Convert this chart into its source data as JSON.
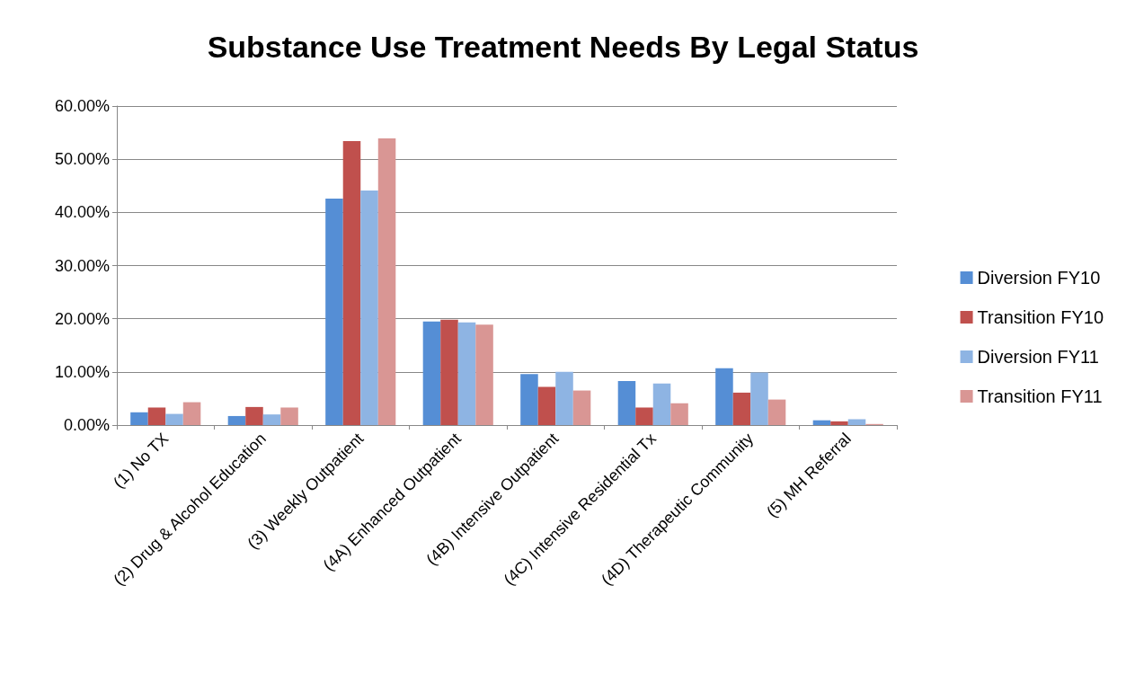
{
  "chart_data": {
    "type": "bar",
    "title": "Substance Use Treatment Needs By Legal Status",
    "categories": [
      "(1) No TX",
      "(2) Drug & Alcohol Education",
      "(3) Weekly Outpatient",
      "(4A) Enhanced Outpatient",
      "(4B) Intensive Outpatient",
      "(4C) Intensive Residential Tx",
      "(4D) Therapeutic Community",
      "(5) MH Referral"
    ],
    "series": [
      {
        "name": "Diversion FY10",
        "color": "#558ed5",
        "values": [
          2.4,
          1.7,
          42.6,
          19.5,
          9.6,
          8.3,
          10.7,
          0.9
        ]
      },
      {
        "name": "Transition FY10",
        "color": "#c0504d",
        "values": [
          3.3,
          3.4,
          53.4,
          19.8,
          7.2,
          3.3,
          6.1,
          0.7
        ]
      },
      {
        "name": "Diversion FY11",
        "color": "#8eb4e3",
        "values": [
          2.1,
          2.0,
          44.1,
          19.3,
          10.0,
          7.8,
          9.9,
          1.1
        ]
      },
      {
        "name": "Transition FY11",
        "color": "#d99694",
        "values": [
          4.3,
          3.3,
          53.9,
          18.9,
          6.5,
          4.1,
          4.8,
          0.2
        ]
      }
    ],
    "ylim": [
      0,
      60
    ],
    "yticks": [
      {
        "value": 0,
        "label": "0.00%"
      },
      {
        "value": 10,
        "label": "10.00%"
      },
      {
        "value": 20,
        "label": "20.00%"
      },
      {
        "value": 30,
        "label": "30.00%"
      },
      {
        "value": 40,
        "label": "40.00%"
      },
      {
        "value": 50,
        "label": "50.00%"
      },
      {
        "value": 60,
        "label": "60.00%"
      }
    ],
    "grid": "y",
    "legend": "right"
  }
}
